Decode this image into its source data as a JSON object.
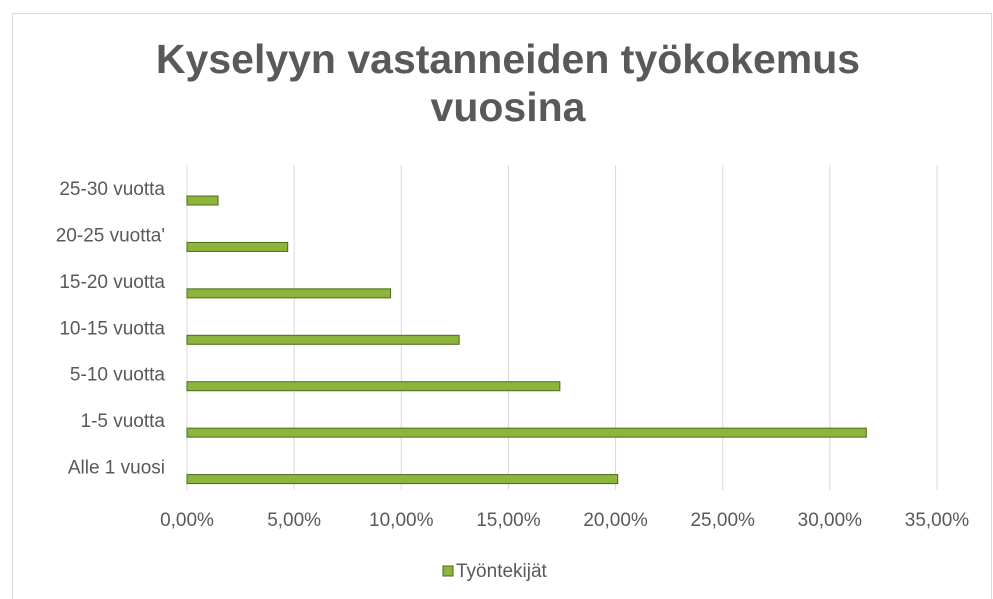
{
  "chart_data": {
    "type": "bar",
    "orientation": "horizontal",
    "title": "Kyselyyn vastanneiden työkokemus vuosina",
    "categories": [
      "25-30 vuotta",
      "20-25 vuotta'",
      "15-20 vuotta",
      "10-15 vuotta",
      "5-10 vuotta",
      "1-5 vuotta",
      "Alle 1 vuosi"
    ],
    "series": [
      {
        "name": "Työntekijät",
        "color": "#8db53c",
        "values": [
          1.45,
          4.7,
          9.5,
          12.7,
          17.4,
          31.7,
          20.1
        ]
      }
    ],
    "xlim": [
      0,
      35
    ],
    "xticks": [
      {
        "value": 0,
        "label": "0,00%"
      },
      {
        "value": 5,
        "label": "5,00%"
      },
      {
        "value": 10,
        "label": "10,00%"
      },
      {
        "value": 15,
        "label": "15,00%"
      },
      {
        "value": 20,
        "label": "20,00%"
      },
      {
        "value": 25,
        "label": "25,00%"
      },
      {
        "value": 30,
        "label": "30,00%"
      },
      {
        "value": 35,
        "label": "35,00%"
      }
    ],
    "grid": true,
    "legend": "bottom"
  }
}
